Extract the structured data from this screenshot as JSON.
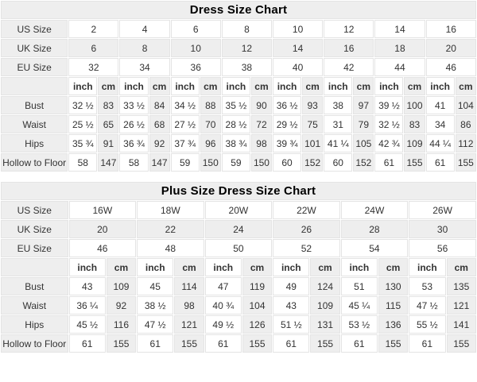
{
  "colors": {
    "background": "#ffffff",
    "shaded_cell": "#eeeeee",
    "border": "#e4e4e4",
    "text": "#333333",
    "title_text": "#000000"
  },
  "tables": [
    {
      "title": "Dress Size Chart",
      "size_rows": [
        {
          "label": "US Size",
          "shaded": false,
          "values": [
            "2",
            "4",
            "6",
            "8",
            "10",
            "12",
            "14",
            "16"
          ]
        },
        {
          "label": "UK Size",
          "shaded": true,
          "values": [
            "6",
            "8",
            "10",
            "12",
            "14",
            "16",
            "18",
            "20"
          ]
        },
        {
          "label": "EU Size",
          "shaded": false,
          "values": [
            "32",
            "34",
            "36",
            "38",
            "40",
            "42",
            "44",
            "46"
          ]
        }
      ],
      "unit_labels": [
        "inch",
        "cm"
      ],
      "measurement_rows": [
        {
          "label": "Bust",
          "values": [
            [
              "32 ½",
              "83"
            ],
            [
              "33 ½",
              "84"
            ],
            [
              "34 ½",
              "88"
            ],
            [
              "35 ½",
              "90"
            ],
            [
              "36 ½",
              "93"
            ],
            [
              "38",
              "97"
            ],
            [
              "39 ½",
              "100"
            ],
            [
              "41",
              "104"
            ]
          ]
        },
        {
          "label": "Waist",
          "values": [
            [
              "25 ½",
              "65"
            ],
            [
              "26 ½",
              "68"
            ],
            [
              "27 ½",
              "70"
            ],
            [
              "28 ½",
              "72"
            ],
            [
              "29 ½",
              "75"
            ],
            [
              "31",
              "79"
            ],
            [
              "32 ½",
              "83"
            ],
            [
              "34",
              "86"
            ]
          ]
        },
        {
          "label": "Hips",
          "values": [
            [
              "35 ¾",
              "91"
            ],
            [
              "36 ¾",
              "92"
            ],
            [
              "37 ¾",
              "96"
            ],
            [
              "38 ¾",
              "98"
            ],
            [
              "39 ¾",
              "101"
            ],
            [
              "41 ¼",
              "105"
            ],
            [
              "42 ¾",
              "109"
            ],
            [
              "44 ¼",
              "112"
            ]
          ]
        },
        {
          "label": "Hollow to Floor",
          "values": [
            [
              "58",
              "147"
            ],
            [
              "58",
              "147"
            ],
            [
              "59",
              "150"
            ],
            [
              "59",
              "150"
            ],
            [
              "60",
              "152"
            ],
            [
              "60",
              "152"
            ],
            [
              "61",
              "155"
            ],
            [
              "61",
              "155"
            ]
          ]
        }
      ],
      "column_widths": {
        "label": 84,
        "inch": 36,
        "cm": 26
      }
    },
    {
      "title": "Plus Size Dress Size Chart",
      "size_rows": [
        {
          "label": "US Size",
          "shaded": false,
          "values": [
            "16W",
            "18W",
            "20W",
            "22W",
            "24W",
            "26W"
          ]
        },
        {
          "label": "UK Size",
          "shaded": true,
          "values": [
            "20",
            "22",
            "24",
            "26",
            "28",
            "30"
          ]
        },
        {
          "label": "EU Size",
          "shaded": false,
          "values": [
            "46",
            "48",
            "50",
            "52",
            "54",
            "56"
          ]
        }
      ],
      "unit_labels": [
        "inch",
        "cm"
      ],
      "measurement_rows": [
        {
          "label": "Bust",
          "values": [
            [
              "43",
              "109"
            ],
            [
              "45",
              "114"
            ],
            [
              "47",
              "119"
            ],
            [
              "49",
              "124"
            ],
            [
              "51",
              "130"
            ],
            [
              "53",
              "135"
            ]
          ]
        },
        {
          "label": "Waist",
          "values": [
            [
              "36 ¼",
              "92"
            ],
            [
              "38 ½",
              "98"
            ],
            [
              "40 ¾",
              "104"
            ],
            [
              "43",
              "109"
            ],
            [
              "45 ¼",
              "115"
            ],
            [
              "47 ½",
              "121"
            ]
          ]
        },
        {
          "label": "Hips",
          "values": [
            [
              "45 ½",
              "116"
            ],
            [
              "47 ½",
              "121"
            ],
            [
              "49 ½",
              "126"
            ],
            [
              "51 ½",
              "131"
            ],
            [
              "53 ½",
              "136"
            ],
            [
              "55 ½",
              "141"
            ]
          ]
        },
        {
          "label": "Hollow to Floor",
          "values": [
            [
              "61",
              "155"
            ],
            [
              "61",
              "155"
            ],
            [
              "61",
              "155"
            ],
            [
              "61",
              "155"
            ],
            [
              "61",
              "155"
            ],
            [
              "61",
              "155"
            ]
          ]
        }
      ],
      "column_widths": {
        "label": 84,
        "inch": 46,
        "cm": 37
      }
    }
  ]
}
